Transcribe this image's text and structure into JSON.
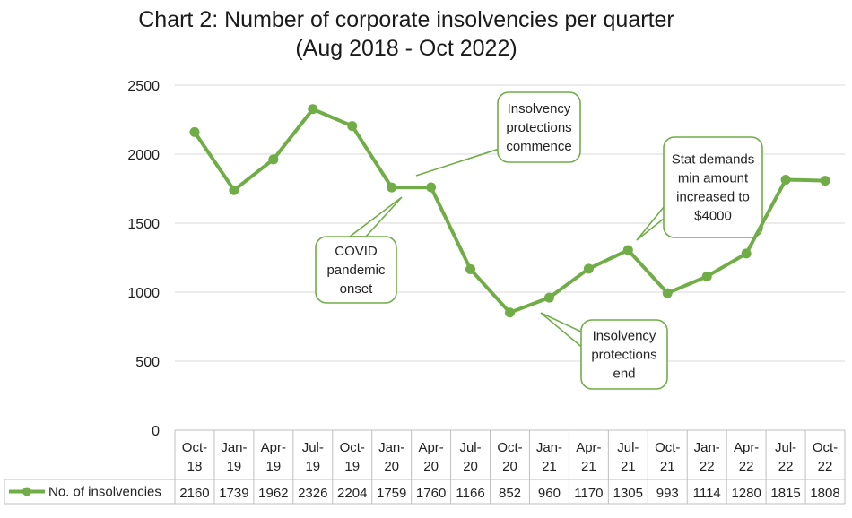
{
  "chart_data": {
    "type": "line",
    "title_line1": "Chart 2: Number of corporate insolvencies per quarter",
    "title_line2": "(Aug 2018 - Oct 2022)",
    "xlabel": "",
    "ylabel": "",
    "ylim": [
      0,
      2500
    ],
    "yticks": [
      "0",
      "500",
      "1000",
      "1500",
      "2000",
      "2500"
    ],
    "grid": true,
    "legend": "data-table-left",
    "categories": [
      [
        "Oct-",
        "18"
      ],
      [
        "Jan-",
        "19"
      ],
      [
        "Apr-",
        "19"
      ],
      [
        "Jul-",
        "19"
      ],
      [
        "Oct-",
        "19"
      ],
      [
        "Jan-",
        "20"
      ],
      [
        "Apr-",
        "20"
      ],
      [
        "Jul-",
        "20"
      ],
      [
        "Oct-",
        "20"
      ],
      [
        "Jan-",
        "21"
      ],
      [
        "Apr-",
        "21"
      ],
      [
        "Jul-",
        "21"
      ],
      [
        "Oct-",
        "21"
      ],
      [
        "Jan-",
        "22"
      ],
      [
        "Apr-",
        "22"
      ],
      [
        "Jul-",
        "22"
      ],
      [
        "Oct-",
        "22"
      ]
    ],
    "series": [
      {
        "name": "No. of insolvencies",
        "color": "#70ad47",
        "values": [
          2160,
          1739,
          1962,
          2326,
          2204,
          1759,
          1760,
          1166,
          852,
          960,
          1170,
          1305,
          993,
          1114,
          1280,
          1815,
          1808
        ]
      }
    ],
    "annotations": [
      {
        "lines": [
          "Insolvency",
          "protections",
          "commence"
        ]
      },
      {
        "lines": [
          "COVID",
          "pandemic",
          "onset"
        ]
      },
      {
        "lines": [
          "Stat demands",
          "min amount",
          "increased to",
          "$4000"
        ]
      },
      {
        "lines": [
          "Insolvency",
          "protections",
          "end"
        ]
      }
    ]
  }
}
